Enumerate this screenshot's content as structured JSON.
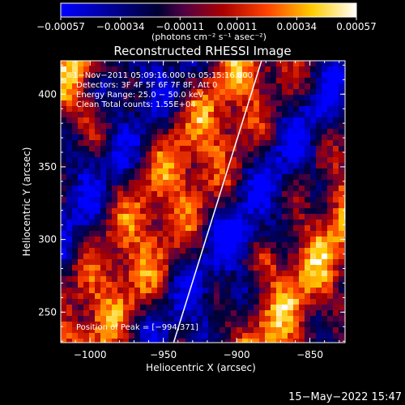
{
  "chart_data": {
    "type": "heatmap",
    "title": "Reconstructed RHESSI Image",
    "xlabel": "Heliocentric X (arcsec)",
    "ylabel": "Heliocentric Y (arcsec)",
    "xlim": [
      -1020,
      -826
    ],
    "ylim": [
      229,
      423
    ],
    "x_ticks": [
      -1000,
      -950,
      -900,
      -850
    ],
    "x_tick_labels": [
      "−1000",
      "−950",
      "−900",
      "−850"
    ],
    "y_ticks": [
      250,
      300,
      350,
      400
    ],
    "y_tick_labels": [
      "250",
      "300",
      "350",
      "400"
    ],
    "colorbar": {
      "range": [
        -0.00057,
        0.00057
      ],
      "ticks": [
        -0.00057,
        -0.00034,
        -0.00011,
        0.00011,
        0.00034,
        0.00057
      ],
      "tick_labels": [
        "−0.00057",
        "−0.00034",
        "−0.00011",
        "0.00011",
        "0.00034",
        "0.00057"
      ],
      "unit_label": "(photons cm⁻² s⁻¹ asec⁻²)",
      "colormap": [
        "#0000ff",
        "#000033",
        "#550044",
        "#aa0000",
        "#ff4400",
        "#ffcc00",
        "#ffffff"
      ]
    },
    "annotations": {
      "time_range": "1−Nov−2011 05:09:16.000 to 05:15:16.000",
      "detectors": "Detectors: 3F 4F 5F 6F 7F 8F, Att 0",
      "energy_range": "Energy Range: 25.0 − 50.0 keV",
      "clean_counts": "Clean     Total counts: 1.55E+04",
      "peak_position": "Position of Peak = [−994,371]"
    },
    "limb_line": [
      [
        -943,
        229
      ],
      [
        -883,
        423
      ]
    ],
    "grid": false
  },
  "footer": {
    "date": "15−May−2022 15:47"
  }
}
